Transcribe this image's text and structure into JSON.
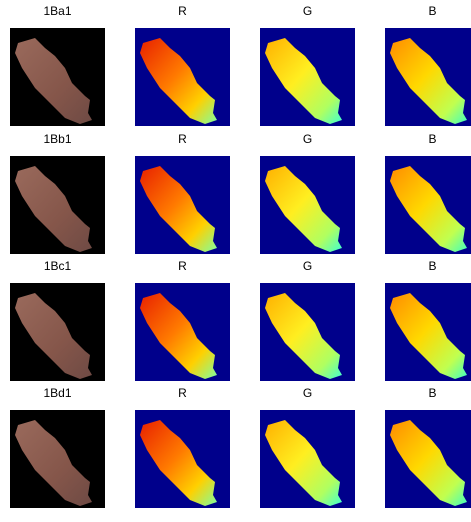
{
  "rows": [
    {
      "title": "1Ba1",
      "channels": [
        "R",
        "G",
        "B"
      ]
    },
    {
      "title": "1Bb1",
      "channels": [
        "R",
        "G",
        "B"
      ]
    },
    {
      "title": "1Bc1",
      "channels": [
        "R",
        "G",
        "B"
      ]
    },
    {
      "title": "1Bd1",
      "channels": [
        "R",
        "G",
        "B"
      ]
    }
  ]
}
